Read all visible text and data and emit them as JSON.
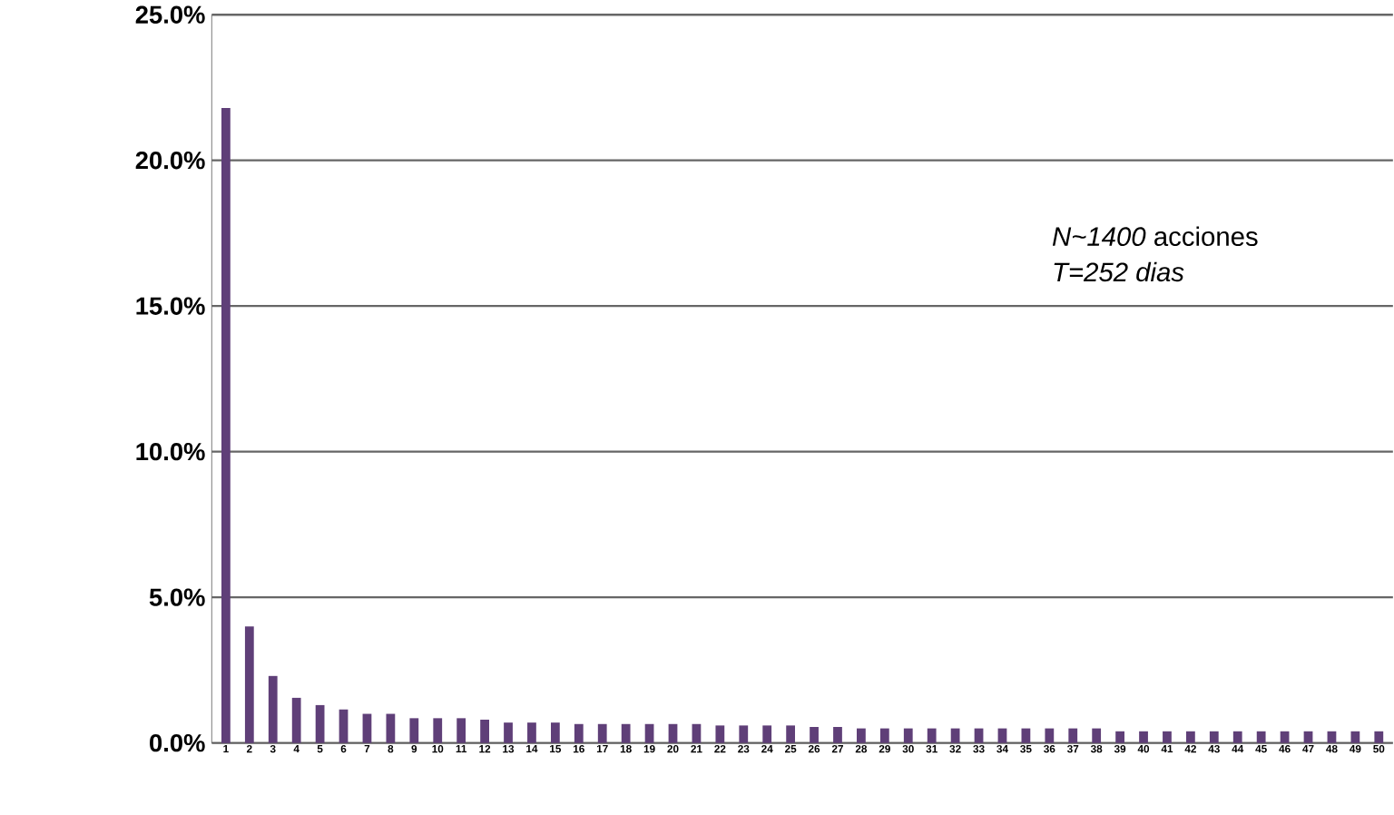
{
  "chart_data": {
    "type": "bar",
    "categories": [
      "1",
      "2",
      "3",
      "4",
      "5",
      "6",
      "7",
      "8",
      "9",
      "10",
      "11",
      "12",
      "13",
      "14",
      "15",
      "16",
      "17",
      "18",
      "19",
      "20",
      "21",
      "22",
      "23",
      "24",
      "25",
      "26",
      "27",
      "28",
      "29",
      "30",
      "31",
      "32",
      "33",
      "34",
      "35",
      "36",
      "37",
      "38",
      "39",
      "40",
      "41",
      "42",
      "43",
      "44",
      "45",
      "46",
      "47",
      "48",
      "49",
      "50"
    ],
    "values": [
      21.8,
      4.0,
      2.3,
      1.55,
      1.3,
      1.15,
      1.0,
      1.0,
      0.85,
      0.85,
      0.85,
      0.8,
      0.7,
      0.7,
      0.7,
      0.65,
      0.65,
      0.65,
      0.65,
      0.65,
      0.65,
      0.6,
      0.6,
      0.6,
      0.6,
      0.55,
      0.55,
      0.5,
      0.5,
      0.5,
      0.5,
      0.5,
      0.5,
      0.5,
      0.5,
      0.5,
      0.5,
      0.5,
      0.4,
      0.4,
      0.4,
      0.4,
      0.4,
      0.4,
      0.4,
      0.4,
      0.4,
      0.4,
      0.4,
      0.4
    ],
    "color": "#5f3f78",
    "ylim": [
      0,
      25
    ],
    "yticks": [
      {
        "value": 0,
        "label": "0.0%"
      },
      {
        "value": 5,
        "label": "5.0%"
      },
      {
        "value": 10,
        "label": "10.0%"
      },
      {
        "value": 15,
        "label": "15.0%"
      },
      {
        "value": 20,
        "label": "20.0%"
      },
      {
        "value": 25,
        "label": "25.0%"
      }
    ],
    "grid": "y",
    "annotations": [
      "*N~1400* acciones",
      "*T=252 dias*"
    ]
  }
}
